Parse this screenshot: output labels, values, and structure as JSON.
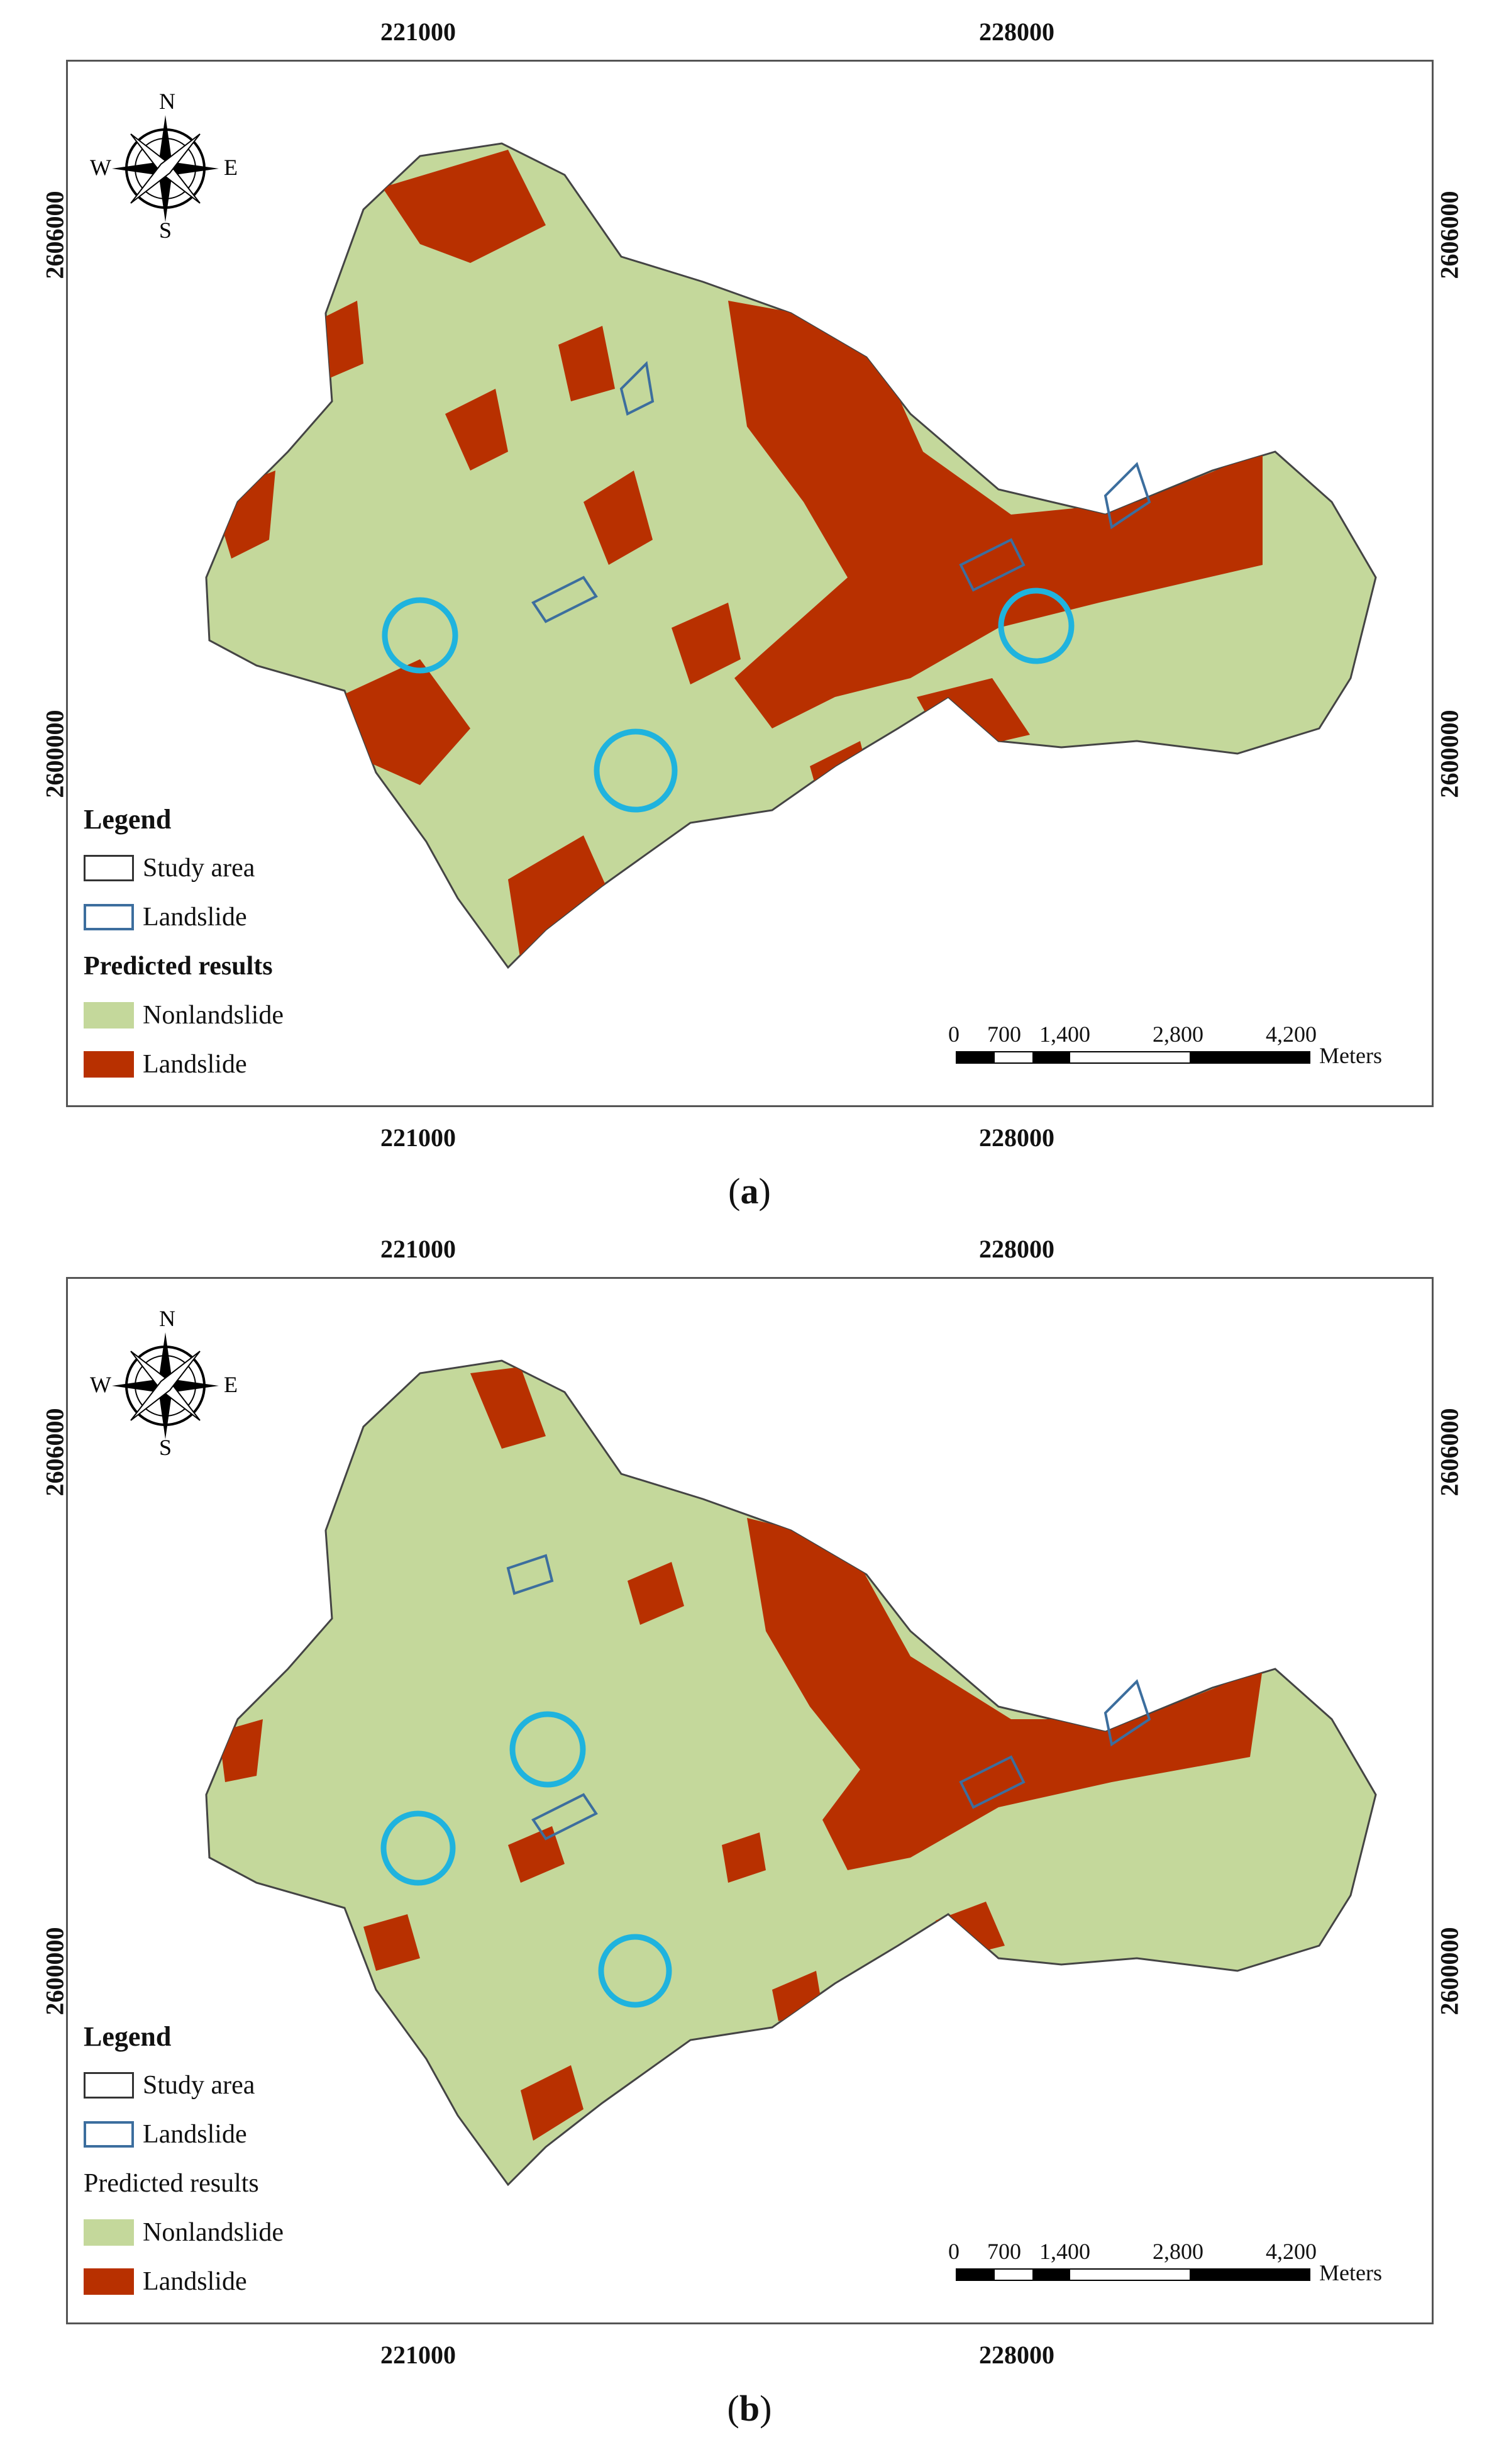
{
  "ticks": {
    "x": [
      "221000",
      "228000"
    ],
    "y": [
      "2606000",
      "2600000"
    ]
  },
  "compass": {
    "n": "N",
    "s": "S",
    "e": "E",
    "w": "W"
  },
  "legend": {
    "title": "Legend",
    "study_area": "Study area",
    "landslide_outline": "Landslide",
    "predicted_title": "Predicted results",
    "nonlandslide": "Nonlandslide",
    "landslide": "Landslide"
  },
  "scale": {
    "labels": [
      "0",
      "700",
      "1,400",
      "2,800",
      "4,200"
    ],
    "unit": "Meters"
  },
  "colors": {
    "nonlandslide": "#c4d89b",
    "landslide": "#b83000",
    "outline": "#3c6e9e",
    "circle": "#1fb3de"
  },
  "captions": {
    "a_open": "(",
    "a_letter": "a",
    "a_close": ")",
    "b_open": "(",
    "b_letter": "b",
    "b_close": ")"
  }
}
